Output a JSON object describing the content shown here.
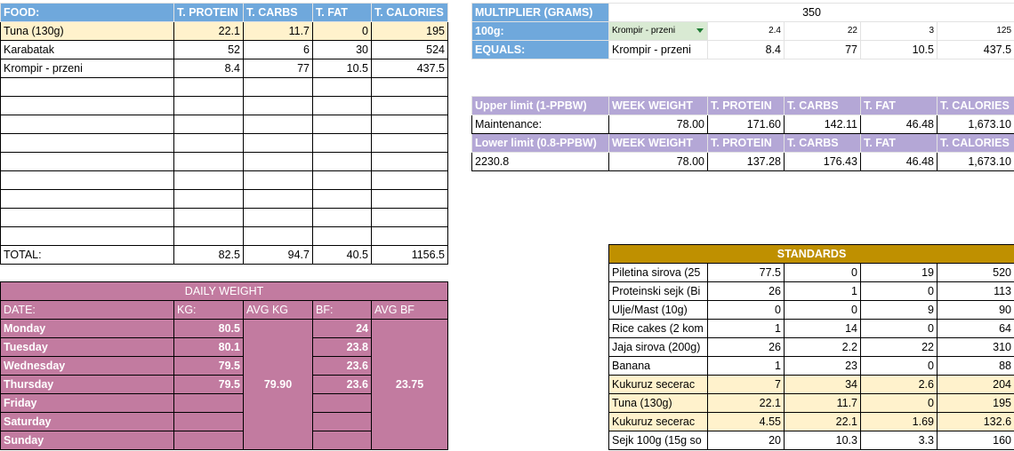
{
  "food_table": {
    "headers": [
      "FOOD:",
      "T. PROTEIN",
      "T. CARBS",
      "T. FAT",
      "T. CALORIES"
    ],
    "rows": [
      [
        "Tuna (130g)",
        "22.1",
        "11.7",
        "0",
        "195"
      ],
      [
        "Karabatak",
        "52",
        "6",
        "30",
        "524"
      ],
      [
        "Krompir - przeni",
        "8.4",
        "77",
        "10.5",
        "437.5"
      ],
      [
        "",
        "",
        "",
        "",
        ""
      ],
      [
        "",
        "",
        "",
        "",
        ""
      ],
      [
        "",
        "",
        "",
        "",
        ""
      ],
      [
        "",
        "",
        "",
        "",
        ""
      ],
      [
        "",
        "",
        "",
        "",
        ""
      ],
      [
        "",
        "",
        "",
        "",
        ""
      ],
      [
        "",
        "",
        "",
        "",
        ""
      ],
      [
        "",
        "",
        "",
        "",
        ""
      ],
      [
        "",
        "",
        "",
        "",
        ""
      ]
    ],
    "total": [
      "TOTAL:",
      "82.5",
      "94.7",
      "40.5",
      "1156.5"
    ]
  },
  "multiplier": {
    "label": "MULTIPLIER (GRAMS)",
    "value": "350",
    "row100_label": "100g:",
    "selected_food": "Krompir - przeni",
    "row100": [
      "2.4",
      "22",
      "3",
      "125"
    ],
    "equals_label": "EQUALS:",
    "equals_food": "Krompir - przeni",
    "equals": [
      "8.4",
      "77",
      "10.5",
      "437.5"
    ]
  },
  "limits": {
    "upper": {
      "headers": [
        "Upper limit (1-PPBW)",
        "WEEK WEIGHT",
        "T. PROTEIN",
        "T. CARBS",
        "T. FAT",
        "T. CALORIES"
      ],
      "row": [
        "Maintenance:",
        "78.00",
        "171.60",
        "142.11",
        "46.48",
        "1,673.10"
      ]
    },
    "lower": {
      "headers": [
        "Lower limit (0.8-PPBW)",
        "WEEK WEIGHT",
        "T. PROTEIN",
        "T. CARBS",
        "T. FAT",
        "T. CALORIES"
      ],
      "row": [
        "2230.8",
        "78.00",
        "137.28",
        "176.43",
        "46.48",
        "1,673.10"
      ]
    }
  },
  "standards": {
    "title": "STANDARDS",
    "rows": [
      [
        "Piletina sirova (25",
        "77.5",
        "0",
        "19",
        "520"
      ],
      [
        "Proteinski sejk (Bi",
        "26",
        "1",
        "0",
        "113"
      ],
      [
        "Ulje/Mast (10g)",
        "0",
        "0",
        "9",
        "90"
      ],
      [
        "Rice cakes (2 kom",
        "1",
        "14",
        "0",
        "64"
      ],
      [
        "Jaja sirova (200g)",
        "26",
        "2.2",
        "22",
        "310"
      ],
      [
        "Banana",
        "1",
        "23",
        "0",
        "88"
      ],
      [
        "Kukuruz secerac",
        "7",
        "34",
        "2.6",
        "204"
      ],
      [
        "Tuna (130g)",
        "22.1",
        "11.7",
        "0",
        "195"
      ],
      [
        "Kukuruz secerac",
        "4.55",
        "22.1",
        "1.69",
        "132.6"
      ],
      [
        "Sejk 100g (15g so",
        "20",
        "10.3",
        "3.3",
        "160"
      ]
    ]
  },
  "daily_weight": {
    "title": "DAILY WEIGHT",
    "headers": [
      "DATE:",
      "KG:",
      "AVG KG",
      "BF:",
      "AVG BF"
    ],
    "avg_kg": "79.90",
    "avg_bf": "23.75",
    "days": [
      [
        "Monday",
        "80.5",
        "24"
      ],
      [
        "Tuesday",
        "80.1",
        "23.8"
      ],
      [
        "Wednesday",
        "79.5",
        "23.6"
      ],
      [
        "Thursday",
        "79.5",
        "23.6"
      ],
      [
        "Friday",
        "",
        ""
      ],
      [
        "Saturday",
        "",
        ""
      ],
      [
        "Sunday",
        "",
        ""
      ]
    ]
  },
  "colors": {
    "header_blue": "#6fa8dc",
    "highlight_yellow": "#fff2cc",
    "limits_purple": "#b4a7d6",
    "standards_gold": "#bf9000",
    "weight_pink": "#c27ba0"
  }
}
